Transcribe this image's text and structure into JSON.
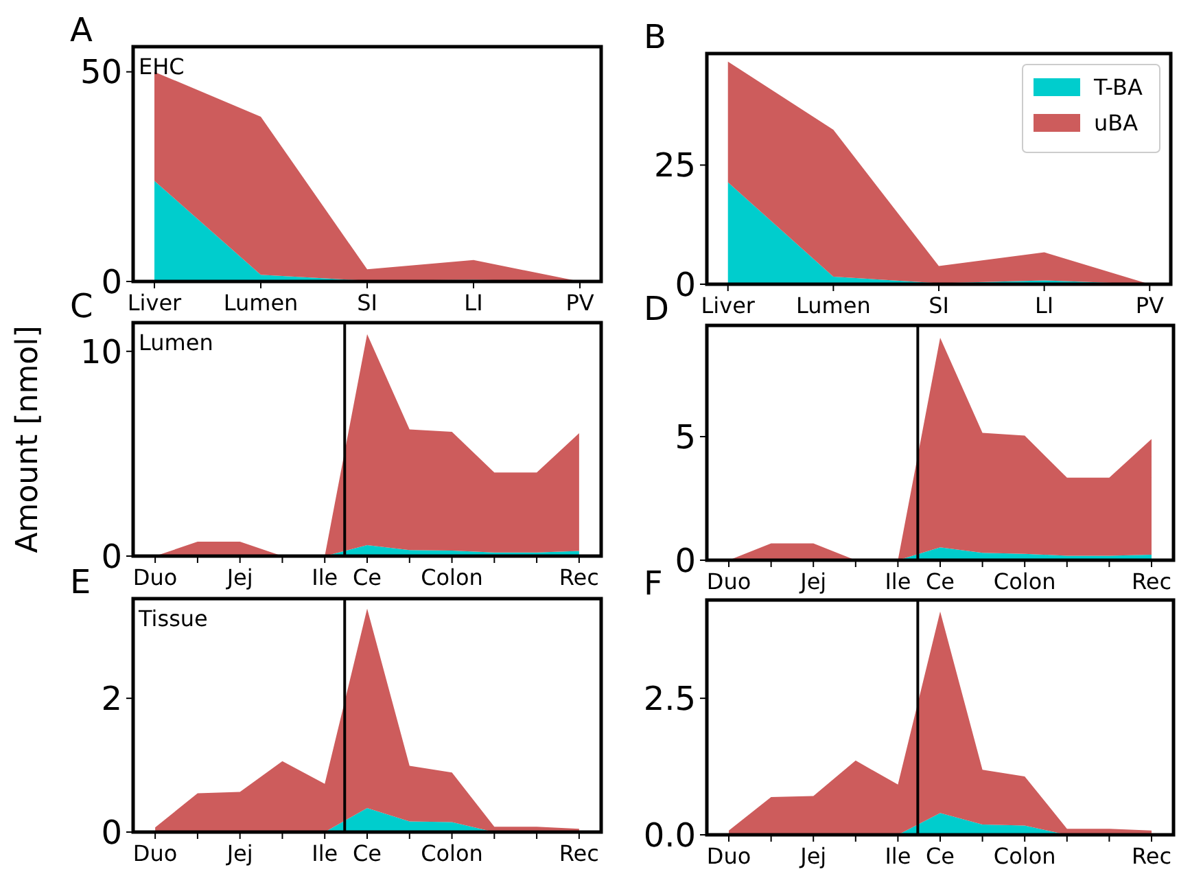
{
  "chart_data": [
    {
      "type": "area",
      "stacked": true,
      "title": "A",
      "annotations": [
        "EHC"
      ],
      "categories": [
        "Liver",
        "Lumen",
        "SI",
        "LI",
        "PV"
      ],
      "ylim": [
        0,
        56
      ],
      "yticks": [
        0,
        50
      ],
      "series": [
        {
          "color": "#00cdcd",
          "values": [
            24.0,
            1.6,
            0.2,
            0.4,
            0
          ]
        },
        {
          "color": "#cd5c5c",
          "values": [
            26.0,
            37.7,
            2.7,
            4.7,
            0
          ]
        }
      ]
    },
    {
      "type": "area",
      "stacked": true,
      "title": "B",
      "legend": "top right",
      "categories": [
        "Liver",
        "Lumen",
        "SI",
        "LI",
        "PV"
      ],
      "ylim": [
        0,
        48.4
      ],
      "yticks": [
        0,
        25
      ],
      "series": [
        {
          "name": "T-BA",
          "color": "#00cdcd",
          "values": [
            21.4,
            1.6,
            0.2,
            0.8,
            0
          ]
        },
        {
          "name": "uBA",
          "color": "#cd5c5c",
          "values": [
            25.3,
            30.8,
            3.6,
            5.9,
            0
          ]
        }
      ]
    },
    {
      "type": "area",
      "stacked": true,
      "title": "C",
      "ylabel": "Amount [nmol]",
      "annotations": [
        "Lumen"
      ],
      "categories": [
        "Duo",
        null,
        "Jej",
        null,
        "Ile",
        "Ce",
        null,
        "Colon",
        null,
        null,
        "Rec"
      ],
      "ylim": [
        0,
        11.4
      ],
      "yticks": [
        0,
        10
      ],
      "series": [
        {
          "color": "#00cdcd",
          "values": [
            0,
            0,
            0,
            0,
            0,
            0.54,
            0.29,
            0.27,
            0.18,
            0.18,
            0.25
          ]
        },
        {
          "color": "#cd5c5c",
          "values": [
            0,
            0.7,
            0.7,
            0,
            0,
            10.3,
            5.9,
            5.8,
            3.9,
            3.9,
            5.75
          ]
        }
      ]
    },
    {
      "type": "area",
      "stacked": true,
      "title": "D",
      "categories": [
        "Duo",
        null,
        "Jej",
        null,
        "Ile",
        "Ce",
        null,
        "Colon",
        null,
        null,
        "Rec"
      ],
      "ylim": [
        0,
        9.5
      ],
      "yticks": [
        0,
        5
      ],
      "series": [
        {
          "color": "#00cdcd",
          "values": [
            0,
            0,
            0,
            0,
            0,
            0.52,
            0.3,
            0.26,
            0.18,
            0.18,
            0.22
          ]
        },
        {
          "color": "#cd5c5c",
          "values": [
            0,
            0.68,
            0.68,
            0,
            0,
            8.48,
            4.85,
            4.78,
            3.16,
            3.16,
            4.68
          ]
        }
      ]
    },
    {
      "type": "area",
      "stacked": true,
      "title": "E",
      "annotations": [
        "Tissue"
      ],
      "categories": [
        "Duo",
        null,
        "Jej",
        null,
        "Ile",
        "Ce",
        null,
        "Colon",
        null,
        null,
        "Rec"
      ],
      "ylim": [
        0,
        3.49
      ],
      "yticks": [
        0,
        2
      ],
      "series": [
        {
          "color": "#00cdcd",
          "values": [
            0,
            0,
            0,
            0,
            0,
            0.36,
            0.16,
            0.15,
            0,
            0,
            0
          ]
        },
        {
          "color": "#cd5c5c",
          "values": [
            0.07,
            0.58,
            0.6,
            1.06,
            0.72,
            2.98,
            0.83,
            0.74,
            0.08,
            0.08,
            0.05
          ]
        }
      ]
    },
    {
      "type": "area",
      "stacked": true,
      "title": "F",
      "categories": [
        "Duo",
        null,
        "Jej",
        null,
        "Ile",
        "Ce",
        null,
        "Colon",
        null,
        null,
        "Rec"
      ],
      "ylim": [
        0,
        4.3
      ],
      "yticks": [
        {
          "value": 0,
          "label": "0.0"
        },
        2.5
      ],
      "series": [
        {
          "color": "#00cdcd",
          "values": [
            0,
            0,
            0,
            0,
            0,
            0.4,
            0.19,
            0.17,
            0,
            0,
            0
          ]
        },
        {
          "color": "#cd5c5c",
          "values": [
            0.08,
            0.69,
            0.71,
            1.36,
            0.92,
            3.69,
            1.0,
            0.9,
            0.11,
            0.11,
            0.08
          ]
        }
      ]
    }
  ]
}
